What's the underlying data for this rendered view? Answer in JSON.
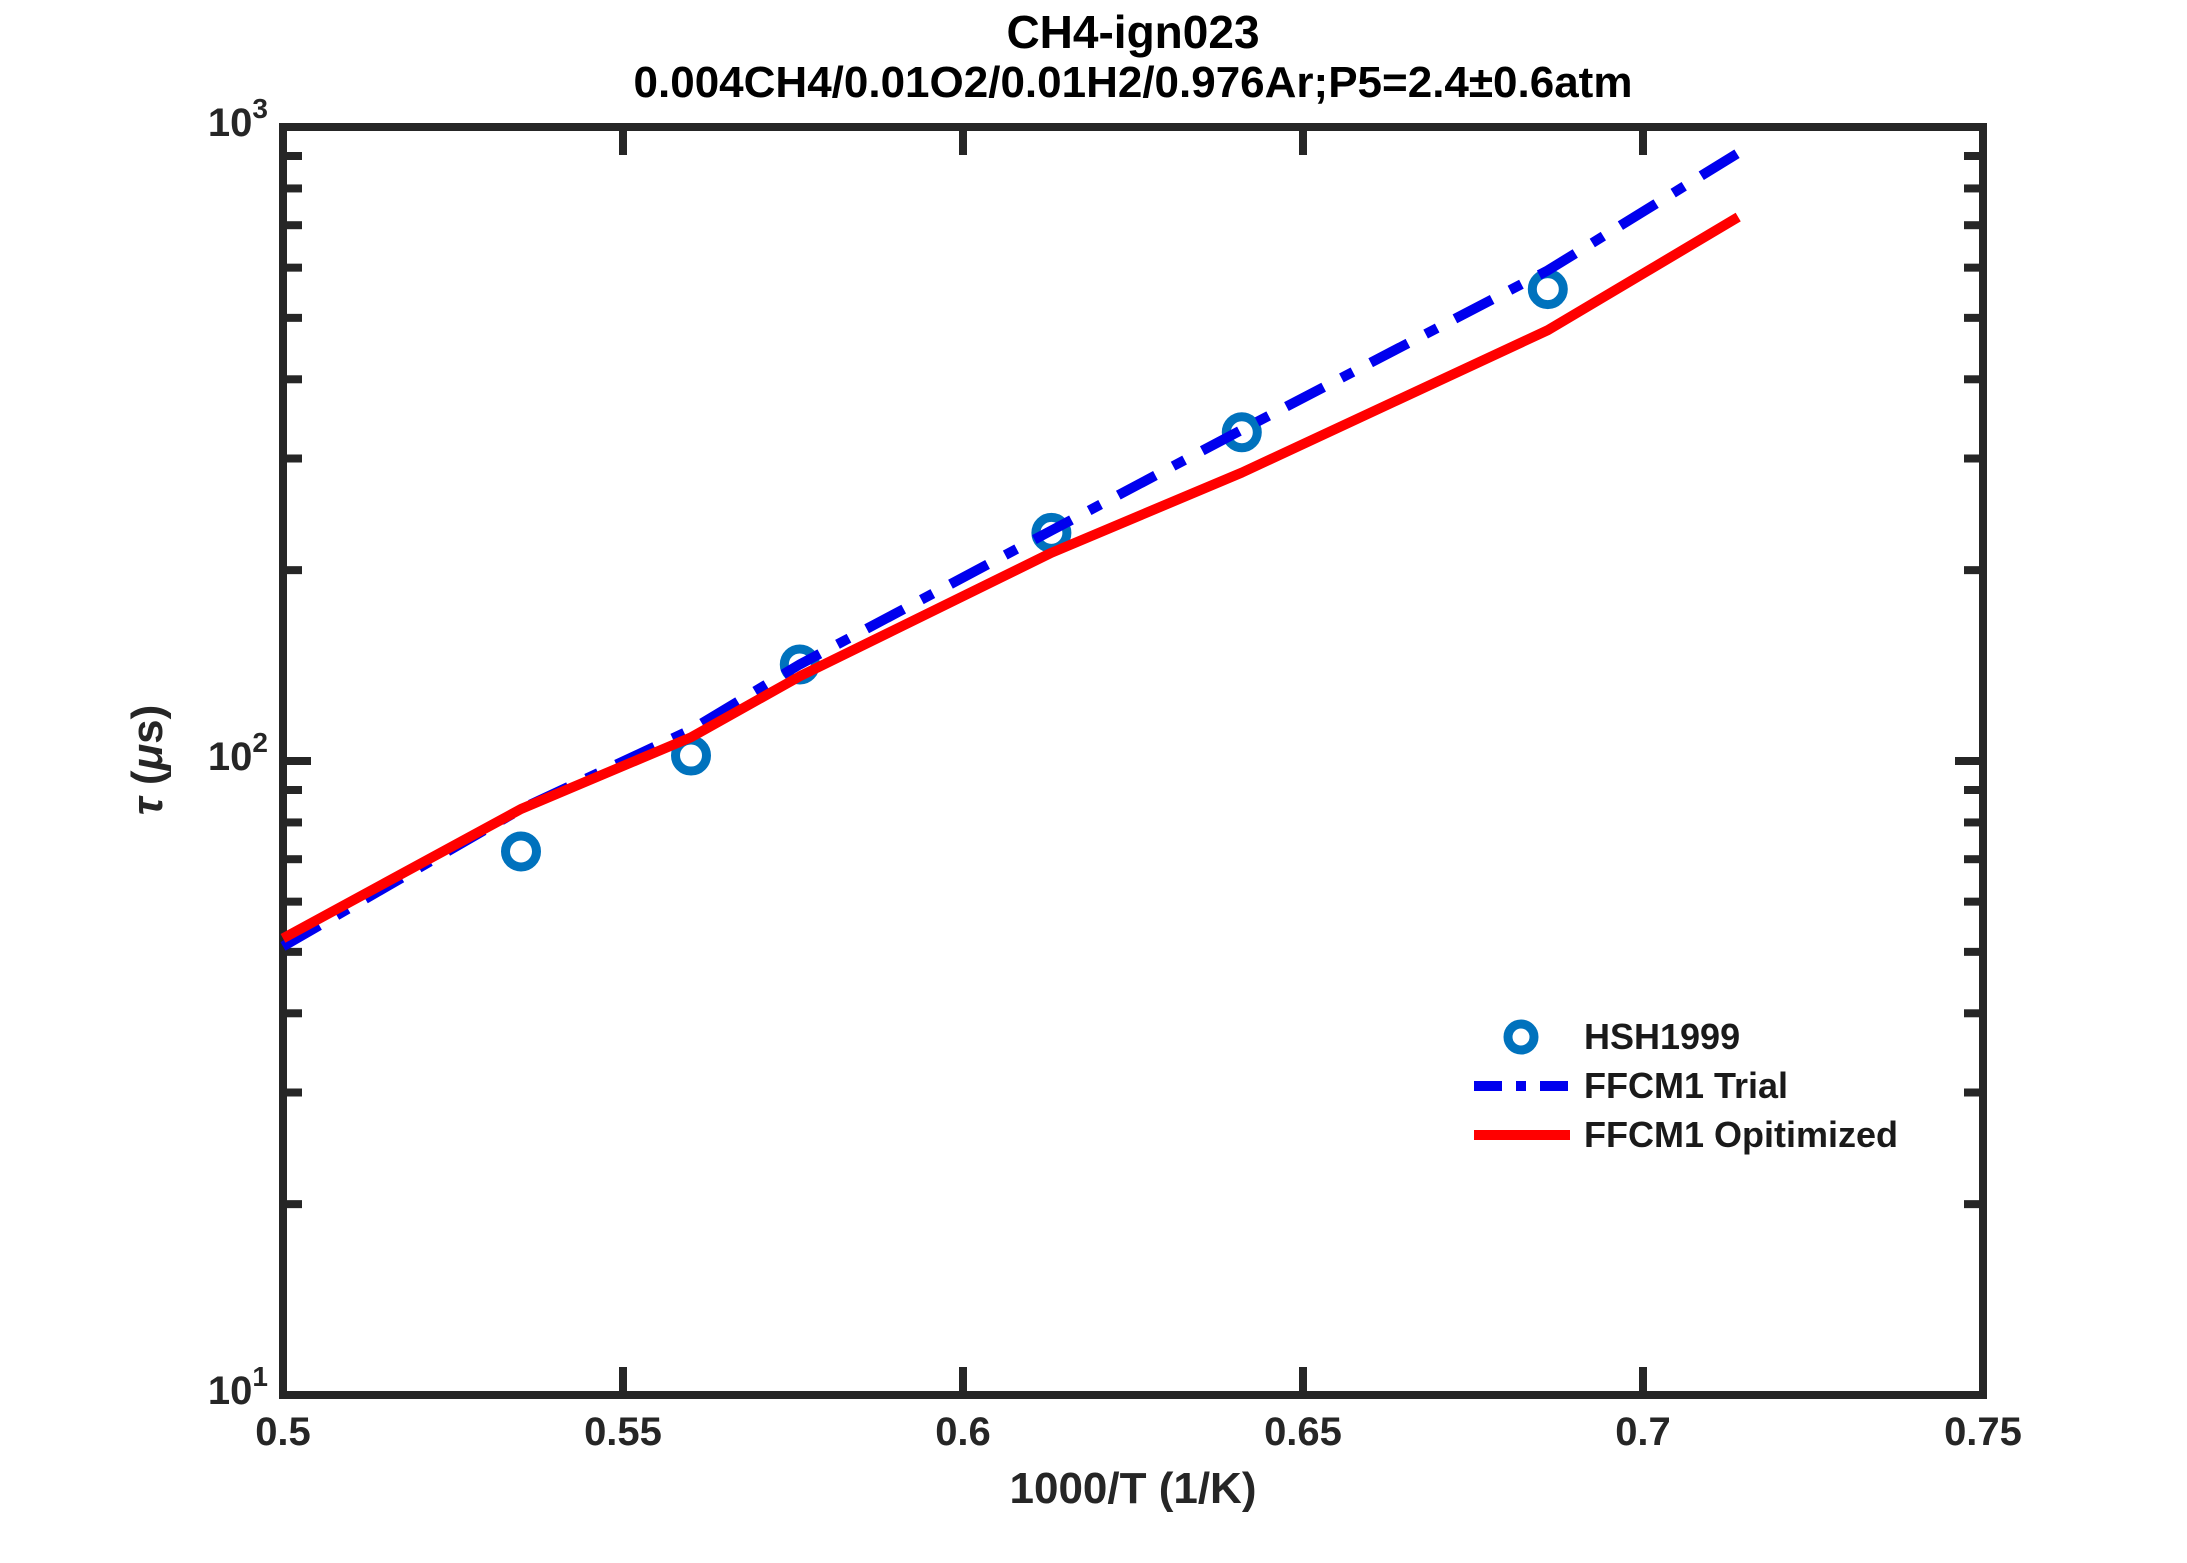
{
  "chart": {
    "title": "CH4-ign023",
    "subtitle": "0.004CH4/0.01O2/0.01H2/0.976Ar;P5=2.4±0.6atm",
    "xlabel": "1000/T (1/K)",
    "ylabel_parts": {
      "tau": "τ",
      "open": " (",
      "mu": "μ",
      "close": "s)"
    },
    "axis_color": "#262626",
    "x_ticks": [
      0.5,
      0.55,
      0.6,
      0.65,
      0.7,
      0.75
    ],
    "x_tick_labels": [
      "0.5",
      "0.55",
      "0.6",
      "0.65",
      "0.7",
      "0.75"
    ],
    "y_major_ticks": [
      10,
      100,
      1000
    ],
    "y_tick_labels": [
      {
        "base": "10",
        "exp": "3",
        "value": 1000
      },
      {
        "base": "10",
        "exp": "2",
        "value": 100
      },
      {
        "base": "10",
        "exp": "1",
        "value": 10
      }
    ],
    "y_minor_ticks": [
      20,
      30,
      40,
      50,
      60,
      70,
      80,
      90,
      200,
      300,
      400,
      500,
      600,
      700,
      800,
      900
    ]
  },
  "chart_data": {
    "type": "line",
    "title": "CH4-ign023",
    "subtitle": "0.004CH4/0.01O2/0.01H2/0.976Ar;P5=2.4±0.6atm",
    "xlabel": "1000/T (1/K)",
    "ylabel": "tau (microseconds)",
    "xlim": [
      0.5,
      0.75
    ],
    "ylim": [
      10,
      1000
    ],
    "yscale": "log",
    "grid": false,
    "legend_position": "lower right inside, no box",
    "series": [
      {
        "name": "HSH1999",
        "kind": "scatter",
        "marker": "open-circle",
        "color": "#0072BD",
        "x": [
          0.535,
          0.56,
          0.576,
          0.613,
          0.641,
          0.686
        ],
        "y": [
          72,
          102,
          142,
          229,
          330,
          555
        ]
      },
      {
        "name": "FFCM1 Trial",
        "kind": "line",
        "style": "dashdot",
        "color": "#0000EE",
        "x": [
          0.5,
          0.535,
          0.56,
          0.576,
          0.613,
          0.641,
          0.686,
          0.714
        ],
        "y": [
          51,
          84,
          112,
          142,
          231,
          333,
          594,
          910
        ]
      },
      {
        "name": "FFCM1 Opitimized",
        "kind": "line",
        "style": "solid",
        "color": "#FF0000",
        "x": [
          0.5,
          0.535,
          0.56,
          0.576,
          0.613,
          0.641,
          0.686,
          0.714
        ],
        "y": [
          52.5,
          84,
          109,
          136,
          213,
          285,
          478,
          721
        ]
      }
    ]
  },
  "legend": {
    "items": [
      {
        "label": "HSH1999"
      },
      {
        "label": "FFCM1 Trial"
      },
      {
        "label": "FFCM1 Opitimized"
      }
    ]
  }
}
